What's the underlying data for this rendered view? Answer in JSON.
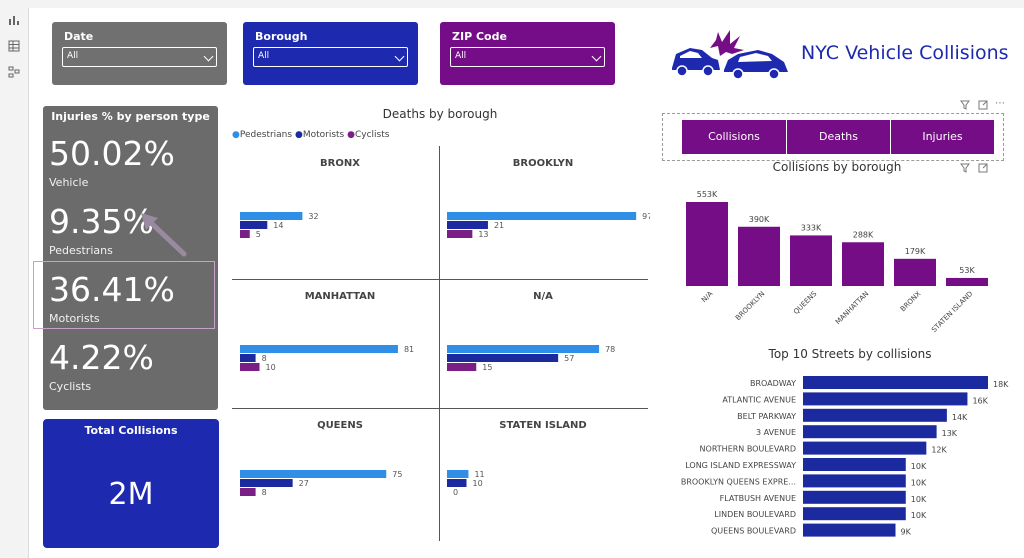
{
  "slicers": [
    {
      "label": "Date",
      "value": "All",
      "color": "#707070"
    },
    {
      "label": "Borough",
      "value": "All",
      "color": "#1d2ab0"
    },
    {
      "label": "ZIP Code",
      "value": "All",
      "color": "#740d87"
    }
  ],
  "header": {
    "title": "NYC Vehicle Collisions",
    "logo_icon": "car-crash-icon"
  },
  "injuries_card": {
    "title": "Injuries % by person type",
    "items": [
      {
        "value": "50.02%",
        "label": "Vehicle"
      },
      {
        "value": "9.35%",
        "label": "Pedestrians"
      },
      {
        "value": "36.41%",
        "label": "Motorists"
      },
      {
        "value": "4.22%",
        "label": "Cyclists"
      }
    ]
  },
  "total_card": {
    "title": "Total Collisions",
    "value": "2M"
  },
  "buttons": [
    "Collisions",
    "Deaths",
    "Injuries"
  ],
  "colors": {
    "pedestrians": "#2f8ee5",
    "motorists": "#1b2a9e",
    "cyclists": "#7a1f86",
    "purple": "#750d86",
    "navy": "#1b2a9e"
  },
  "chart_data": [
    {
      "type": "bar",
      "title": "Deaths by borough",
      "legend": [
        "Pedestrians",
        "Motorists",
        "Cyclists"
      ],
      "legend_position": "top-left",
      "panels": [
        {
          "name": "BRONX",
          "values": [
            32,
            14,
            5
          ],
          "labels": [
            "32",
            "14",
            "5"
          ]
        },
        {
          "name": "BROOKLYN",
          "values": [
            97,
            21,
            13
          ],
          "labels": [
            "97",
            "21",
            "13"
          ]
        },
        {
          "name": "MANHATTAN",
          "values": [
            81,
            8,
            10
          ],
          "labels": [
            "81",
            "8",
            "10"
          ]
        },
        {
          "name": "N/A",
          "values": [
            78,
            57,
            15
          ],
          "labels": [
            "78",
            "57",
            "15"
          ]
        },
        {
          "name": "QUEENS",
          "values": [
            75,
            27,
            8
          ],
          "labels": [
            "75",
            "27",
            "8"
          ]
        },
        {
          "name": "STATEN ISLAND",
          "values": [
            11,
            10,
            0
          ],
          "labels": [
            "11",
            "10",
            "0"
          ]
        }
      ],
      "xmax": 100
    },
    {
      "type": "bar",
      "title": "Collisions by borough",
      "categories": [
        "N/A",
        "BROOKLYN",
        "QUEENS",
        "MANHATTAN",
        "BRONX",
        "STATEN ISLAND"
      ],
      "values": [
        553000,
        390000,
        333000,
        288000,
        179000,
        53000
      ],
      "labels": [
        "553K",
        "390K",
        "333K",
        "288K",
        "179K",
        "53K"
      ],
      "ylim": [
        0,
        553000
      ]
    },
    {
      "type": "bar",
      "title": "Top 10 Streets by collisions",
      "categories": [
        "BROADWAY",
        "ATLANTIC AVENUE",
        "BELT PARKWAY",
        "3 AVENUE",
        "NORTHERN BOULEVARD",
        "LONG ISLAND EXPRESSWAY",
        "BROOKLYN QUEENS EXPRE...",
        "FLATBUSH AVENUE",
        "LINDEN BOULEVARD",
        "QUEENS BOULEVARD"
      ],
      "values": [
        18000,
        16000,
        14000,
        13000,
        12000,
        10000,
        10000,
        10000,
        10000,
        9000
      ],
      "labels": [
        "18K",
        "16K",
        "14K",
        "13K",
        "12K",
        "10K",
        "10K",
        "10K",
        "10K",
        "9K"
      ],
      "xlim": [
        0,
        18000
      ]
    }
  ]
}
